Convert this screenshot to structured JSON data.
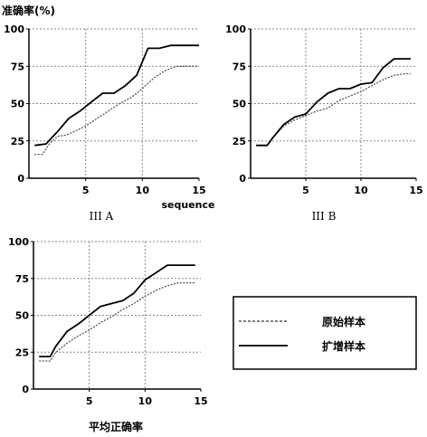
{
  "figure": {
    "y_axis_label": "准确率(%)",
    "legend": {
      "entries": [
        {
          "label": "原始样本",
          "style": "dashed"
        },
        {
          "label": "扩增样本",
          "style": "solid"
        }
      ]
    }
  },
  "chart_data": [
    {
      "type": "line",
      "caption": "III A",
      "xlabel": "sequence",
      "xlim": [
        0,
        15
      ],
      "ylim": [
        0,
        100
      ],
      "xticks": [
        5,
        10,
        15
      ],
      "yticks": [
        0,
        25,
        50,
        75,
        100
      ],
      "grid": true,
      "series": [
        {
          "name": "原始样本",
          "style": "dashed",
          "x": [
            0.5,
            1.2,
            1.8,
            2.5,
            3.3,
            4.2,
            5,
            6,
            7,
            8,
            9,
            10,
            11,
            12,
            13,
            14,
            15
          ],
          "y": [
            16,
            16,
            23,
            28,
            29,
            32,
            35,
            40,
            45,
            50,
            54,
            60,
            67,
            72,
            75,
            75,
            75
          ]
        },
        {
          "name": "扩增样本",
          "style": "solid",
          "x": [
            0.5,
            1.5,
            2.5,
            3.5,
            4.5,
            5.5,
            6.5,
            7.5,
            8.5,
            9.5,
            10.5,
            11.5,
            12.5,
            13.5,
            15
          ],
          "y": [
            22,
            23,
            31,
            40,
            45,
            51,
            57,
            57,
            62,
            69,
            87,
            87,
            89,
            89,
            89
          ]
        }
      ]
    },
    {
      "type": "line",
      "caption": "III B",
      "xlabel": "",
      "xlim": [
        0,
        15
      ],
      "ylim": [
        0,
        100
      ],
      "xticks": [
        5,
        10,
        15
      ],
      "yticks": [
        0,
        25,
        50,
        75,
        100
      ],
      "grid": true,
      "series": [
        {
          "name": "原始样本",
          "style": "dashed",
          "x": [
            0.5,
            1.5,
            2,
            3,
            4,
            5,
            6,
            7,
            8,
            9,
            10,
            11,
            12,
            13,
            14,
            14.5
          ],
          "y": [
            22,
            22,
            27,
            35,
            39,
            42,
            45,
            47,
            52,
            55,
            58,
            62,
            66,
            69,
            70,
            70
          ]
        },
        {
          "name": "扩增样本",
          "style": "solid",
          "x": [
            0.5,
            1.5,
            2,
            3,
            4,
            5,
            6,
            7,
            8,
            9,
            10,
            11,
            12,
            13,
            14,
            14.5
          ],
          "y": [
            22,
            22,
            27,
            36,
            41,
            43,
            51,
            57,
            60,
            60,
            63,
            64,
            74,
            80,
            80,
            80
          ]
        }
      ]
    },
    {
      "type": "line",
      "caption": "平均正确率",
      "xlabel": "",
      "xlim": [
        0,
        15
      ],
      "ylim": [
        0,
        100
      ],
      "xticks": [
        5,
        10,
        15
      ],
      "yticks": [
        0,
        25,
        50,
        75,
        100
      ],
      "grid": true,
      "series": [
        {
          "name": "原始样本",
          "style": "dashed",
          "x": [
            0.5,
            1.5,
            2,
            3,
            4,
            5,
            6,
            7,
            8,
            9,
            10,
            11,
            12,
            13,
            14,
            14.5
          ],
          "y": [
            19,
            19,
            25,
            31,
            36,
            40,
            45,
            49,
            54,
            58,
            63,
            67,
            70,
            72,
            72,
            72
          ]
        },
        {
          "name": "扩增样本",
          "style": "solid",
          "x": [
            0.5,
            1.5,
            2,
            3,
            4,
            5,
            6,
            7,
            8,
            9,
            10,
            11,
            12,
            13,
            14,
            14.5
          ],
          "y": [
            22,
            22,
            29,
            39,
            44,
            50,
            56,
            58,
            60,
            65,
            74,
            79,
            84,
            84,
            84,
            84
          ]
        }
      ]
    }
  ]
}
